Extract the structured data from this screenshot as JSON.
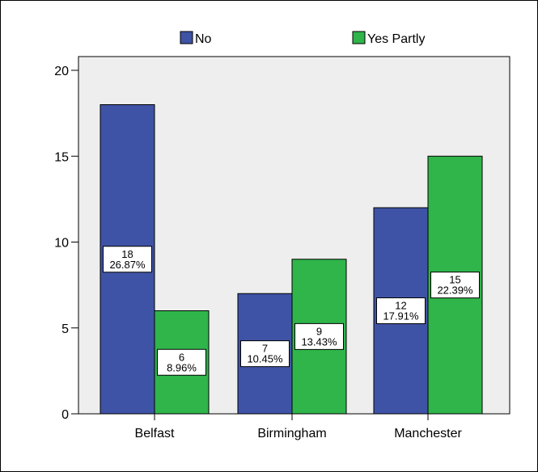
{
  "chart_data": {
    "type": "bar",
    "categories": [
      "Belfast",
      "Birmingham",
      "Manchester"
    ],
    "series": [
      {
        "name": "No",
        "color": "#3f53a6",
        "values": [
          18,
          7,
          12
        ],
        "labels": [
          [
            "18",
            "26.87%"
          ],
          [
            "7",
            "10.45%"
          ],
          [
            "12",
            "17.91%"
          ]
        ]
      },
      {
        "name": "Yes Partly",
        "color": "#2fb54a",
        "values": [
          6,
          9,
          15
        ],
        "labels": [
          [
            "6",
            "8.96%"
          ],
          [
            "9",
            "13.43%"
          ],
          [
            "15",
            "22.39%"
          ]
        ]
      }
    ],
    "ylim": [
      0,
      20
    ],
    "yticks": [
      0,
      5,
      10,
      15,
      20
    ],
    "title": "",
    "xlabel": "",
    "ylabel": "",
    "legend_position": "top",
    "plot_background": "#eeeeee",
    "grid": false
  }
}
